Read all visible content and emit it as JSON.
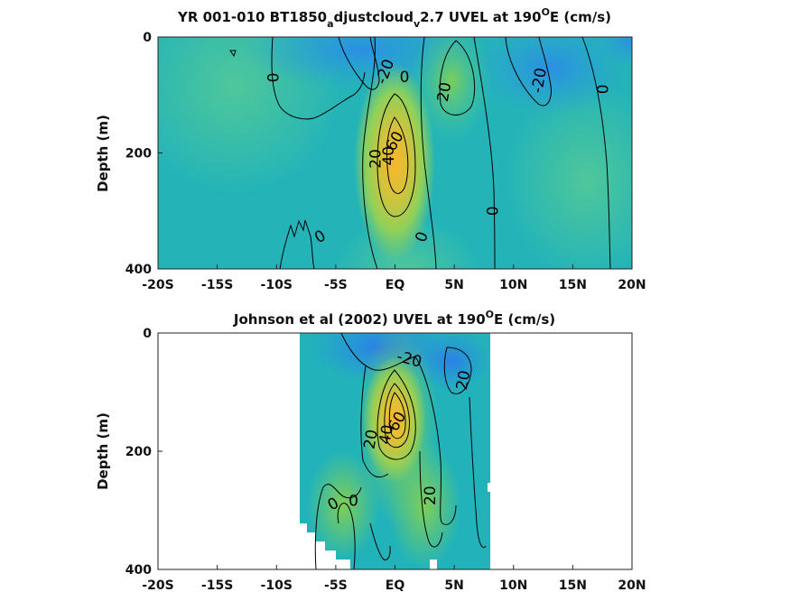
{
  "chart_data": [
    {
      "type": "heatmap",
      "title_main": "YR 001-010 BT1850",
      "title_sub1": "a",
      "title_mid": "djustcloud",
      "title_sub2": "v",
      "title_tail": "2.7 UVEL at 190",
      "title_sup": "O",
      "title_end": "E (cm/s)",
      "ylabel": "Depth (m)",
      "xlim": [
        -20,
        20
      ],
      "ylim": [
        0,
        400
      ],
      "xticks": [
        -20,
        -15,
        -10,
        -5,
        0,
        5,
        10,
        15,
        20
      ],
      "xtick_labels": [
        "-20S",
        "-15S",
        "-10S",
        "-5S",
        "EQ",
        "5N",
        "10N",
        "15N",
        "20N"
      ],
      "yticks": [
        0,
        200,
        400
      ],
      "ytick_labels": [
        "0",
        "200",
        "400"
      ],
      "data_extent_x": [
        -20,
        20
      ],
      "contour_labels": [
        {
          "text": "0",
          "x": -10.2,
          "y": 70,
          "rot": -90
        },
        {
          "text": "-20",
          "x": -0.8,
          "y": 60,
          "rot": -70
        },
        {
          "text": "0",
          "x": 0.8,
          "y": 70,
          "rot": 0
        },
        {
          "text": "20",
          "x": 4.2,
          "y": 95,
          "rot": -80
        },
        {
          "text": "-20",
          "x": 12.2,
          "y": 75,
          "rot": -80
        },
        {
          "text": "0",
          "x": 17.6,
          "y": 90,
          "rot": -90
        },
        {
          "text": "60",
          "x": 0.0,
          "y": 180,
          "rot": -60
        },
        {
          "text": "40",
          "x": -0.5,
          "y": 205,
          "rot": -90
        },
        {
          "text": "20",
          "x": -1.6,
          "y": 210,
          "rot": -90
        },
        {
          "text": "0",
          "x": 8.3,
          "y": 300,
          "rot": -90
        },
        {
          "text": "0",
          "x": -6.3,
          "y": 345,
          "rot": -30
        },
        {
          "text": "0",
          "x": 2.3,
          "y": 345,
          "rot": -70
        }
      ]
    },
    {
      "type": "heatmap",
      "title_main": "Johnson et al (2002) UVEL at 190",
      "title_sup": "O",
      "title_end": "E (cm/s)",
      "ylabel": "Depth (m)",
      "xlim": [
        -20,
        20
      ],
      "ylim": [
        0,
        400
      ],
      "xticks": [
        -20,
        -15,
        -10,
        -5,
        0,
        5,
        10,
        15,
        20
      ],
      "xtick_labels": [
        "-20S",
        "-15S",
        "-10S",
        "-5S",
        "EQ",
        "5N",
        "10N",
        "15N",
        "20N"
      ],
      "yticks": [
        0,
        200,
        400
      ],
      "ytick_labels": [
        "0",
        "200",
        "400"
      ],
      "data_extent_x": [
        -8,
        8
      ],
      "contour_labels": [
        {
          "text": "-20",
          "x": 1.2,
          "y": 45,
          "rot": 15
        },
        {
          "text": "20",
          "x": 5.8,
          "y": 80,
          "rot": -80
        },
        {
          "text": "60",
          "x": 0.2,
          "y": 150,
          "rot": -60
        },
        {
          "text": "40",
          "x": -0.7,
          "y": 172,
          "rot": -80
        },
        {
          "text": "20",
          "x": -2.0,
          "y": 180,
          "rot": -80
        },
        {
          "text": "20",
          "x": 3.0,
          "y": 275,
          "rot": -90
        },
        {
          "text": "0",
          "x": -5.2,
          "y": 290,
          "rot": -30
        },
        {
          "text": "0",
          "x": -3.5,
          "y": 285,
          "rot": 0
        }
      ]
    }
  ]
}
